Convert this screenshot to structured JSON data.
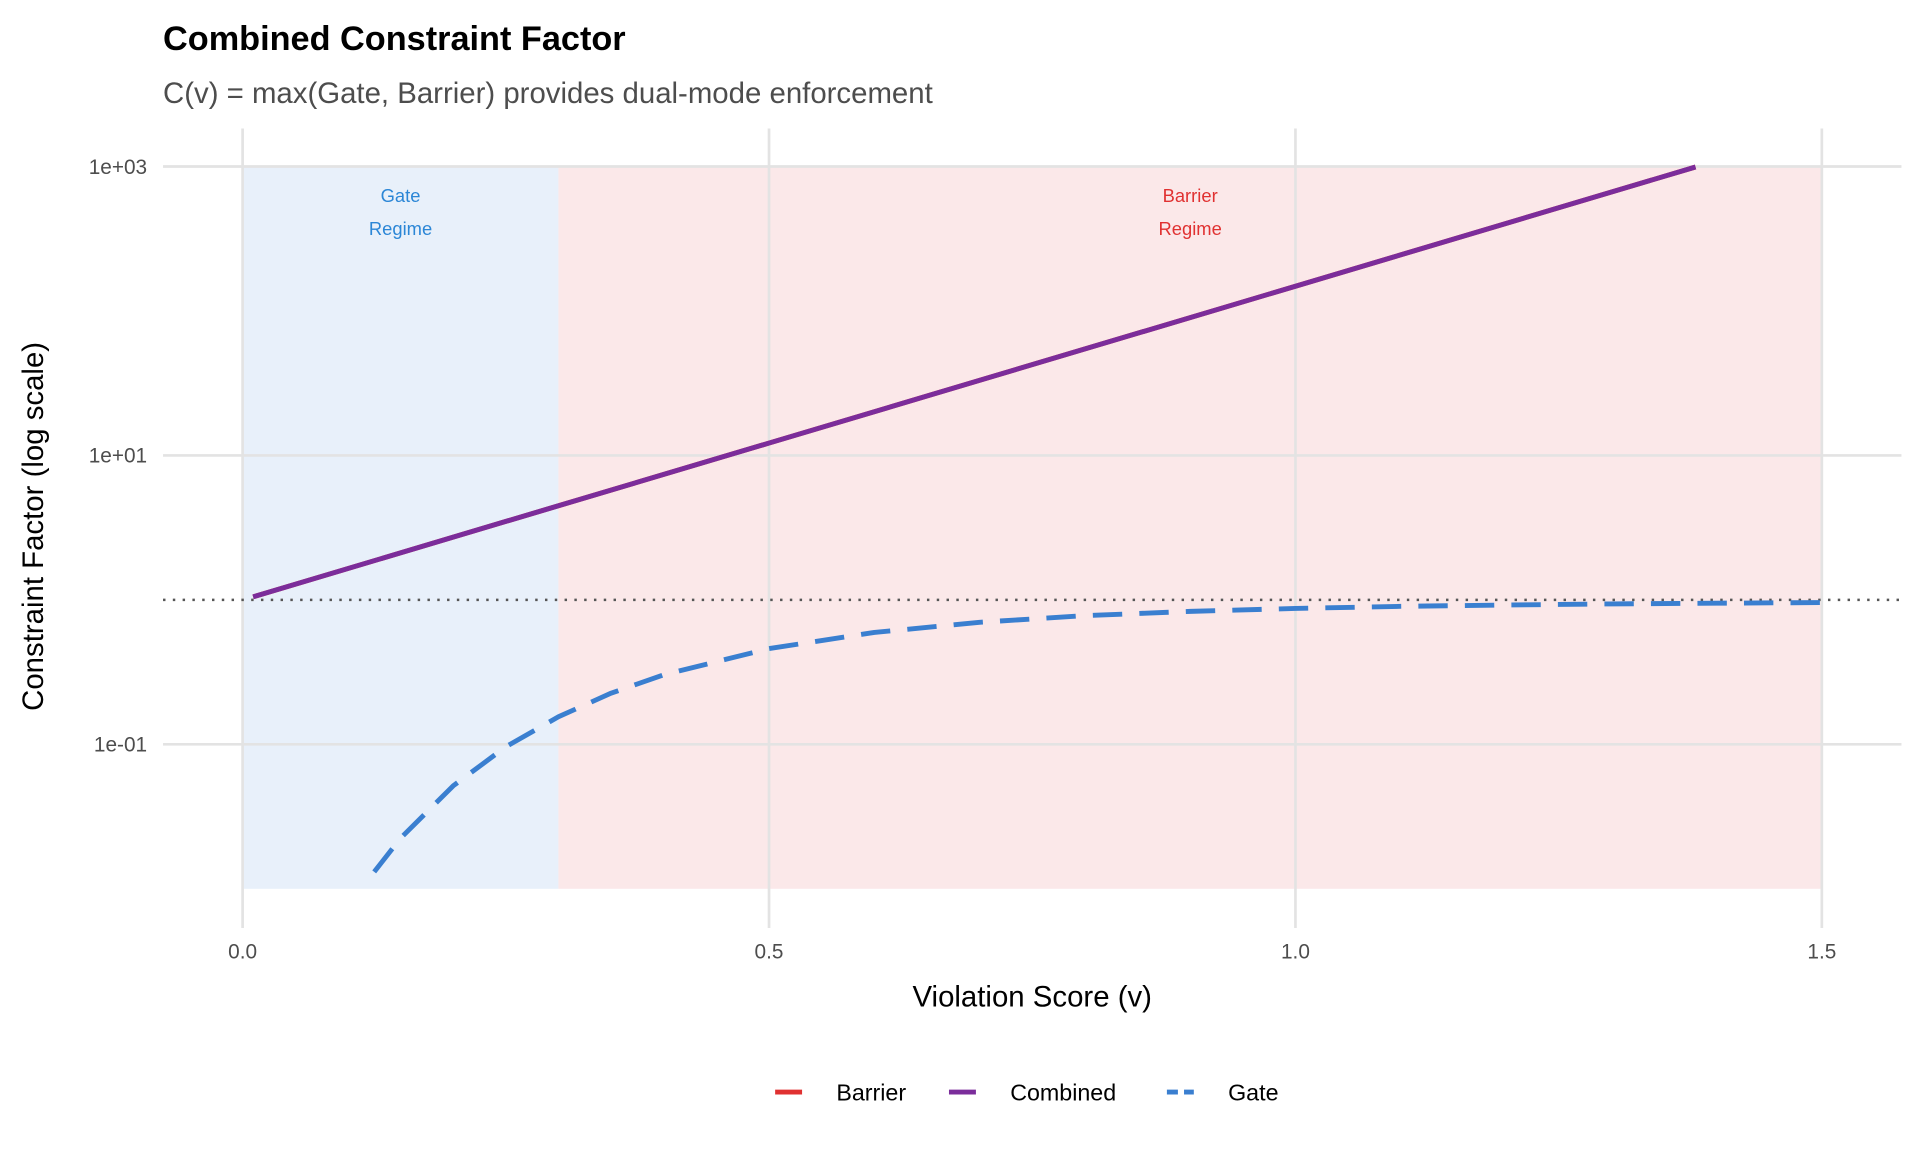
{
  "chart_data": {
    "type": "line",
    "title": "Combined Constraint Factor",
    "subtitle": "C(v) = max(Gate, Barrier) provides dual-mode enforcement",
    "xlabel": "Violation Score (v)",
    "ylabel": "Constraint Factor (log scale)",
    "xlim": [
      0,
      1.5
    ],
    "ylim": [
      0.01,
      1000
    ],
    "yscale": "log",
    "grid": true,
    "x_ticks": [
      0,
      0.5,
      1.0,
      1.5
    ],
    "x_tick_labels": [
      "0.0",
      "0.5",
      "1.0",
      "1.5"
    ],
    "y_ticks": [
      0.1,
      10,
      1000
    ],
    "y_tick_labels": [
      "1e-01",
      "1e+01",
      "1e+03"
    ],
    "reference_line": {
      "y": 1,
      "style": "dotted",
      "color": "#555555"
    },
    "regions": [
      {
        "label_lines": [
          "Gate",
          "Regime"
        ],
        "x": [
          0,
          0.3
        ],
        "y": [
          0.01,
          1000
        ],
        "fill": "#E8F0FA",
        "text_color": "#2B86D6"
      },
      {
        "label_lines": [
          "Barrier",
          "Regime"
        ],
        "x": [
          0.3,
          1.5
        ],
        "y": [
          0.01,
          1000
        ],
        "fill": "#FBE8E9",
        "text_color": "#E03131"
      }
    ],
    "legend": {
      "placement": "bottom"
    },
    "series": [
      {
        "name": "Barrier",
        "color": "#E03131",
        "dash": "solid",
        "x": [
          0.01,
          0.3,
          0.5,
          1.0,
          1.38
        ],
        "y": [
          1.05,
          4.48,
          12.18,
          148.4,
          992
        ]
      },
      {
        "name": "Combined",
        "color": "#7B2D9B",
        "dash": "solid",
        "x": [
          0.01,
          0.3,
          0.5,
          1.0,
          1.38
        ],
        "y": [
          1.05,
          4.48,
          12.18,
          148.4,
          992
        ]
      },
      {
        "name": "Gate",
        "color": "#3A7FD0",
        "dash": "dashed",
        "x": [
          0.125,
          0.15,
          0.2,
          0.25,
          0.3,
          0.35,
          0.4,
          0.5,
          0.6,
          0.7,
          0.8,
          0.9,
          1.0,
          1.1,
          1.2,
          1.3,
          1.4,
          1.5
        ],
        "y": [
          0.0131,
          0.0224,
          0.0516,
          0.0961,
          0.155,
          0.226,
          0.303,
          0.46,
          0.595,
          0.7,
          0.777,
          0.832,
          0.872,
          0.901,
          0.922,
          0.937,
          0.949,
          0.958
        ]
      }
    ]
  }
}
